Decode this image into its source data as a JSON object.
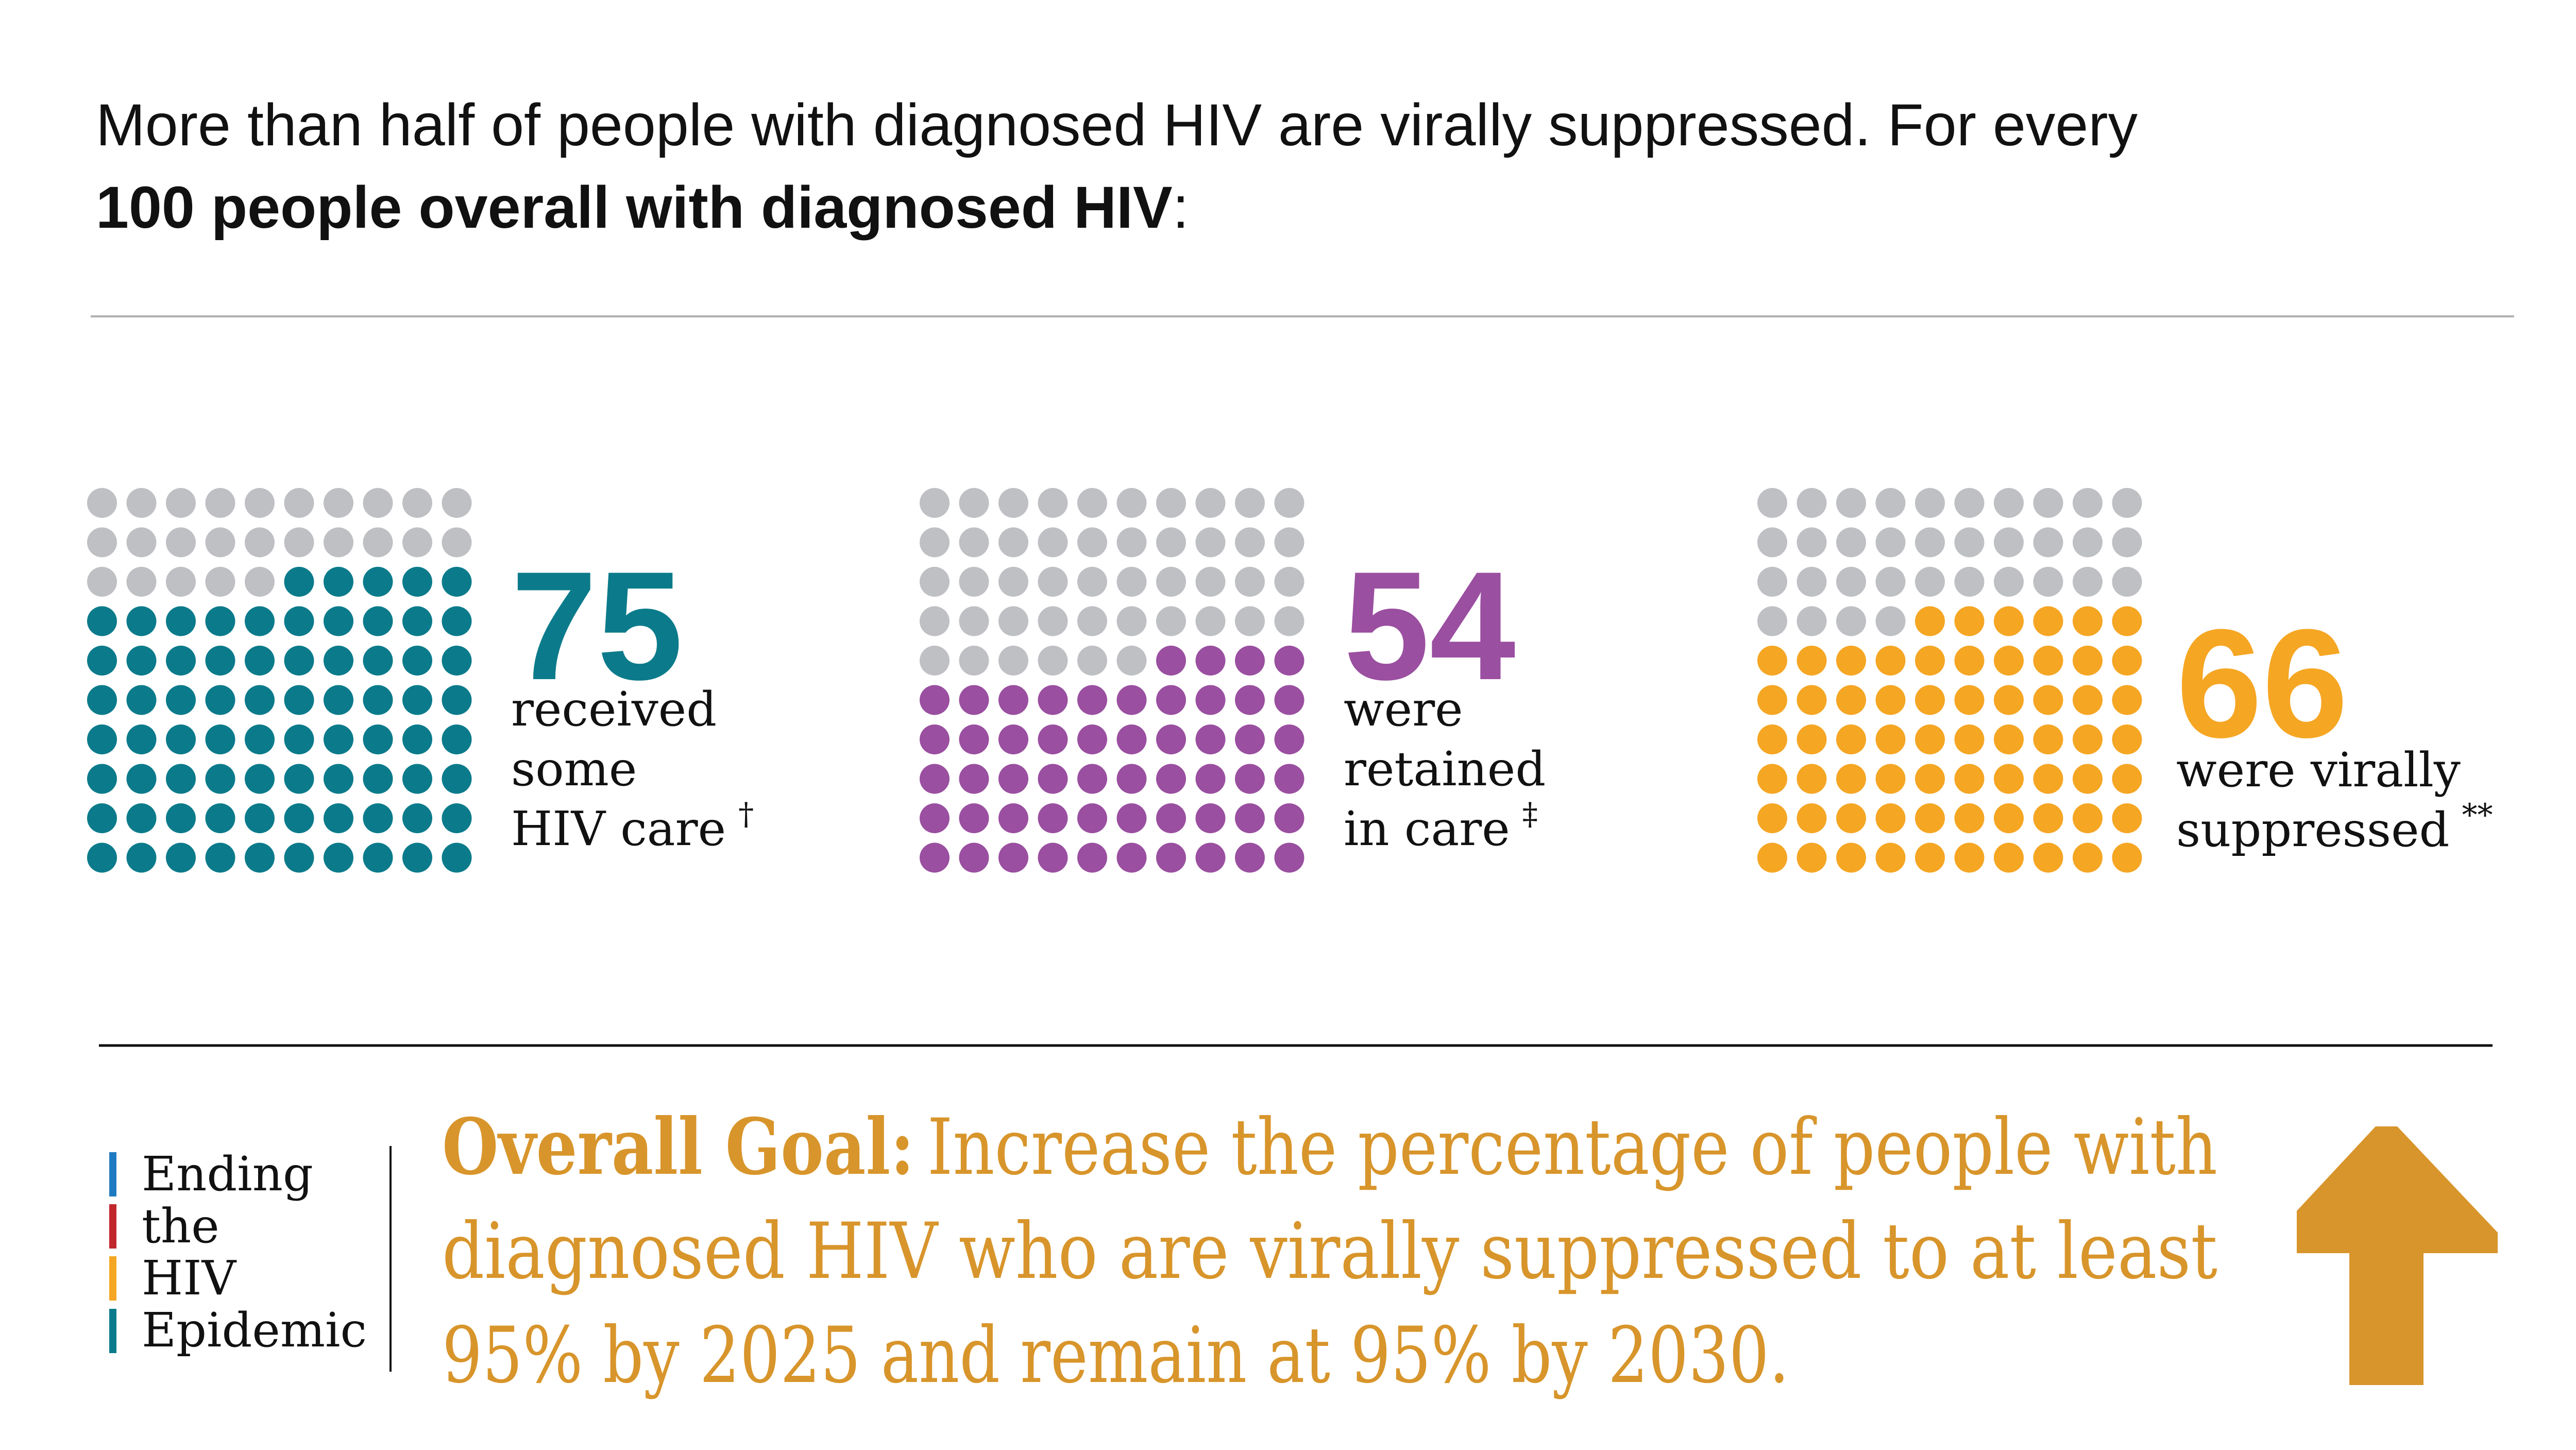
{
  "header": {
    "line1": "More than half of people with diagnosed HIV are virally suppressed. For every",
    "line2_bold": "100 people overall with diagnosed HIV",
    "line2_end": ":"
  },
  "chart_data": [
    {
      "type": "waffle",
      "value": 75,
      "total": 100,
      "color": "#0b7b8b",
      "empty_color": "#bfc0c4",
      "label_lines": [
        "received",
        "some",
        "HIV care"
      ],
      "footnote": "†"
    },
    {
      "type": "waffle",
      "value": 54,
      "total": 100,
      "color": "#9a4fa0",
      "empty_color": "#bfc0c4",
      "label_lines": [
        "were",
        "retained",
        "in care"
      ],
      "footnote": "‡"
    },
    {
      "type": "waffle",
      "value": 66,
      "total": 100,
      "color": "#f5a623",
      "empty_color": "#bfc0c4",
      "label_lines": [
        "were virally",
        "suppressed"
      ],
      "footnote": "**"
    }
  ],
  "logo": {
    "lines": [
      "Ending",
      "the",
      "HIV",
      "Epidemic"
    ]
  },
  "goal": {
    "label": "Overall Goal:",
    "lines": [
      "Increase the percentage of people with",
      "diagnosed HIV who are virally suppressed to at least",
      "95% by 2025 and remain at 95% by 2030."
    ]
  }
}
